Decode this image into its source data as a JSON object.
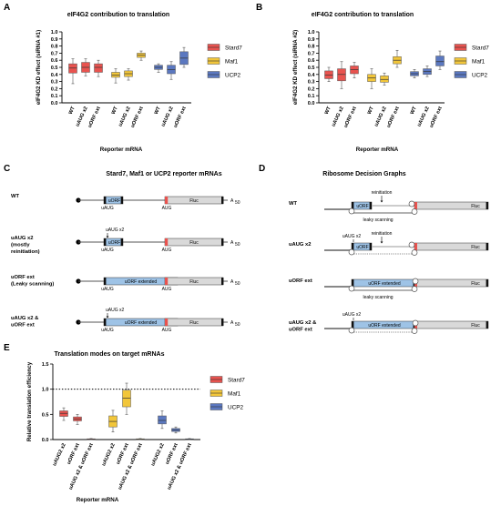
{
  "colors": {
    "stard7": "#e8534f",
    "maf1": "#f2c63a",
    "ucp2": "#5b78c0",
    "uorf_box": "#9ec3e6",
    "fluc_box": "#d9d9d9",
    "aug_mark": "#e8534f"
  },
  "panel_a": {
    "letter": "A",
    "chart_data": {
      "type": "box",
      "title": "eIF4G2 contribution to translation",
      "ylabel": "eIF4G2 KD effect (siRNA #1)",
      "xlabel": "Reporter mRNA",
      "ylim": [
        0,
        1.0
      ],
      "yticks": [
        "0.0",
        "0.1",
        "0.2",
        "0.3",
        "0.4",
        "0.5",
        "0.6",
        "0.7",
        "0.8",
        "0.9",
        "1.0"
      ],
      "categories": [
        "WT",
        "uAUG x2",
        "uORF ext",
        "WT",
        "uAUG x2",
        "uORF ext",
        "WT",
        "uAUG x2",
        "uORF ext"
      ],
      "legend": [
        "Stard7",
        "Maf1",
        "UCP2"
      ],
      "boxes": [
        {
          "series": "Stard7",
          "min": 0.27,
          "q1": 0.42,
          "median": 0.49,
          "q3": 0.55,
          "max": 0.62
        },
        {
          "series": "Stard7",
          "min": 0.38,
          "q1": 0.43,
          "median": 0.5,
          "q3": 0.57,
          "max": 0.62
        },
        {
          "series": "Stard7",
          "min": 0.37,
          "q1": 0.43,
          "median": 0.5,
          "q3": 0.55,
          "max": 0.6
        },
        {
          "series": "Maf1",
          "min": 0.28,
          "q1": 0.36,
          "median": 0.39,
          "q3": 0.43,
          "max": 0.48
        },
        {
          "series": "Maf1",
          "min": 0.32,
          "q1": 0.37,
          "median": 0.41,
          "q3": 0.45,
          "max": 0.48
        },
        {
          "series": "Maf1",
          "min": 0.6,
          "q1": 0.64,
          "median": 0.67,
          "q3": 0.7,
          "max": 0.73
        },
        {
          "series": "UCP2",
          "min": 0.43,
          "q1": 0.47,
          "median": 0.5,
          "q3": 0.53,
          "max": 0.55
        },
        {
          "series": "UCP2",
          "min": 0.33,
          "q1": 0.41,
          "median": 0.47,
          "q3": 0.53,
          "max": 0.58
        },
        {
          "series": "UCP2",
          "min": 0.5,
          "q1": 0.54,
          "median": 0.63,
          "q3": 0.72,
          "max": 0.78
        }
      ]
    }
  },
  "panel_b": {
    "letter": "B",
    "chart_data": {
      "type": "box",
      "title": "eIF4G2 contribution to translation",
      "ylabel": "eIF4G2 KD effect (siRNA #2)",
      "xlabel": "Reporter mRNA",
      "ylim": [
        0,
        1.0
      ],
      "yticks": [
        "0.0",
        "0.1",
        "0.2",
        "0.3",
        "0.4",
        "0.5",
        "0.6",
        "0.7",
        "0.8",
        "0.9",
        "1.0"
      ],
      "categories": [
        "WT",
        "uAUG x2",
        "uORF ext",
        "WT",
        "uAUG x2",
        "uORF ext",
        "WT",
        "uAUG x2",
        "uORF ext"
      ],
      "legend": [
        "Stard7",
        "Maf1",
        "UCP2"
      ],
      "boxes": [
        {
          "series": "Stard7",
          "min": 0.3,
          "q1": 0.34,
          "median": 0.39,
          "q3": 0.45,
          "max": 0.5
        },
        {
          "series": "Stard7",
          "min": 0.2,
          "q1": 0.31,
          "median": 0.4,
          "q3": 0.48,
          "max": 0.58
        },
        {
          "series": "Stard7",
          "min": 0.35,
          "q1": 0.41,
          "median": 0.47,
          "q3": 0.52,
          "max": 0.57
        },
        {
          "series": "Maf1",
          "min": 0.2,
          "q1": 0.3,
          "median": 0.35,
          "q3": 0.4,
          "max": 0.48
        },
        {
          "series": "Maf1",
          "min": 0.25,
          "q1": 0.29,
          "median": 0.33,
          "q3": 0.38,
          "max": 0.42
        },
        {
          "series": "Maf1",
          "min": 0.5,
          "q1": 0.55,
          "median": 0.6,
          "q3": 0.65,
          "max": 0.74
        },
        {
          "series": "UCP2",
          "min": 0.35,
          "q1": 0.38,
          "median": 0.41,
          "q3": 0.44,
          "max": 0.47
        },
        {
          "series": "UCP2",
          "min": 0.37,
          "q1": 0.4,
          "median": 0.44,
          "q3": 0.48,
          "max": 0.52
        },
        {
          "series": "UCP2",
          "min": 0.47,
          "q1": 0.52,
          "median": 0.58,
          "q3": 0.66,
          "max": 0.73
        }
      ]
    }
  },
  "panel_c": {
    "letter": "C",
    "title": "Stard7, Maf1 or UCP2 reporter mRNAs",
    "rows": [
      {
        "label_lines": [
          "WT"
        ],
        "uorf_label": "uORF",
        "above": "",
        "uaug": "uAUG",
        "aug": "AUG",
        "fluc": "Fluc",
        "polya": "A",
        "polya_sub": "50",
        "extended": false
      },
      {
        "label_lines": [
          "uAUG x2",
          "(mostly",
          "reinitiation)"
        ],
        "uorf_label": "uORF",
        "above": "uAUG x2",
        "uaug": "uAUG",
        "aug": "AUG",
        "fluc": "Fluc",
        "polya": "A",
        "polya_sub": "50",
        "extended": false
      },
      {
        "label_lines": [
          "uORF ext",
          "(Leaky scanning)"
        ],
        "uorf_label": "uORF extended",
        "above": "",
        "uaug": "uAUG",
        "aug": "AUG",
        "fluc": "Fluc",
        "polya": "A",
        "polya_sub": "50",
        "extended": true
      },
      {
        "label_lines": [
          "uAUG x2 &",
          "uORF ext"
        ],
        "uorf_label": "uORF extended",
        "above": "uAUG x2",
        "uaug": "uAUG",
        "aug": "AUG",
        "fluc": "Fluc",
        "polya": "A",
        "polya_sub": "50",
        "extended": true
      }
    ]
  },
  "panel_d": {
    "letter": "D",
    "title": "Ribosome Decision Graphs",
    "rows": [
      {
        "label_lines": [
          "WT"
        ],
        "uorf_label": "uORF",
        "above_left": "",
        "above_right": "reinitiation",
        "below": "leaky scanning",
        "fluc": "Fluc",
        "extended": false
      },
      {
        "label_lines": [
          "uAUG x2"
        ],
        "uorf_label": "uORF",
        "above_left": "uAUG x2",
        "above_right": "reinitiation",
        "below": "",
        "fluc": "Fluc",
        "extended": false
      },
      {
        "label_lines": [
          "uORF ext"
        ],
        "uorf_label": "uORF extended",
        "above_left": "",
        "above_right": "",
        "below": "leaky scanning",
        "fluc": "Fluc",
        "extended": true
      },
      {
        "label_lines": [
          "uAUG x2 &",
          "uORF ext"
        ],
        "uorf_label": "uORF extended",
        "above_left": "uAUG x2",
        "above_right": "",
        "below": "",
        "fluc": "Fluc",
        "extended": true
      }
    ]
  },
  "panel_e": {
    "letter": "E",
    "chart_data": {
      "type": "box",
      "title": "Translation modes on target mRNAs",
      "ylabel": "Relative translation efficiency",
      "xlabel": "Reporter mRNA",
      "ylim": [
        0,
        1.5
      ],
      "yticks": [
        "0.0",
        "0.5",
        "1.0",
        "1.5"
      ],
      "reference_line": 1.0,
      "categories": [
        "uAUG2 x2",
        "uORF ext",
        "uAUG x2 & uORF ext",
        "uAUG2 x2",
        "uORF ext",
        "uAUG x2 & uORF ext",
        "uAUG2 x2",
        "uORF ext",
        "uAUG x2 & uORF ext"
      ],
      "legend": [
        "Stard7",
        "Maf1",
        "UCP2"
      ],
      "boxes": [
        {
          "series": "Stard7",
          "min": 0.38,
          "q1": 0.46,
          "median": 0.52,
          "q3": 0.57,
          "max": 0.63
        },
        {
          "series": "Stard7",
          "min": 0.3,
          "q1": 0.37,
          "median": 0.41,
          "q3": 0.45,
          "max": 0.5
        },
        {
          "series": "Stard7",
          "min": 0.0,
          "q1": 0.005,
          "median": 0.01,
          "q3": 0.015,
          "max": 0.02
        },
        {
          "series": "Maf1",
          "min": 0.15,
          "q1": 0.25,
          "median": 0.36,
          "q3": 0.47,
          "max": 0.58
        },
        {
          "series": "Maf1",
          "min": 0.5,
          "q1": 0.65,
          "median": 0.82,
          "q3": 0.98,
          "max": 1.12
        },
        {
          "series": "Maf1",
          "min": 0.0,
          "q1": 0.005,
          "median": 0.01,
          "q3": 0.015,
          "max": 0.02
        },
        {
          "series": "UCP2",
          "min": 0.22,
          "q1": 0.31,
          "median": 0.38,
          "q3": 0.47,
          "max": 0.57
        },
        {
          "series": "UCP2",
          "min": 0.13,
          "q1": 0.16,
          "median": 0.19,
          "q3": 0.22,
          "max": 0.25
        },
        {
          "series": "UCP2",
          "min": 0.0,
          "q1": 0.005,
          "median": 0.01,
          "q3": 0.015,
          "max": 0.02
        }
      ]
    }
  }
}
